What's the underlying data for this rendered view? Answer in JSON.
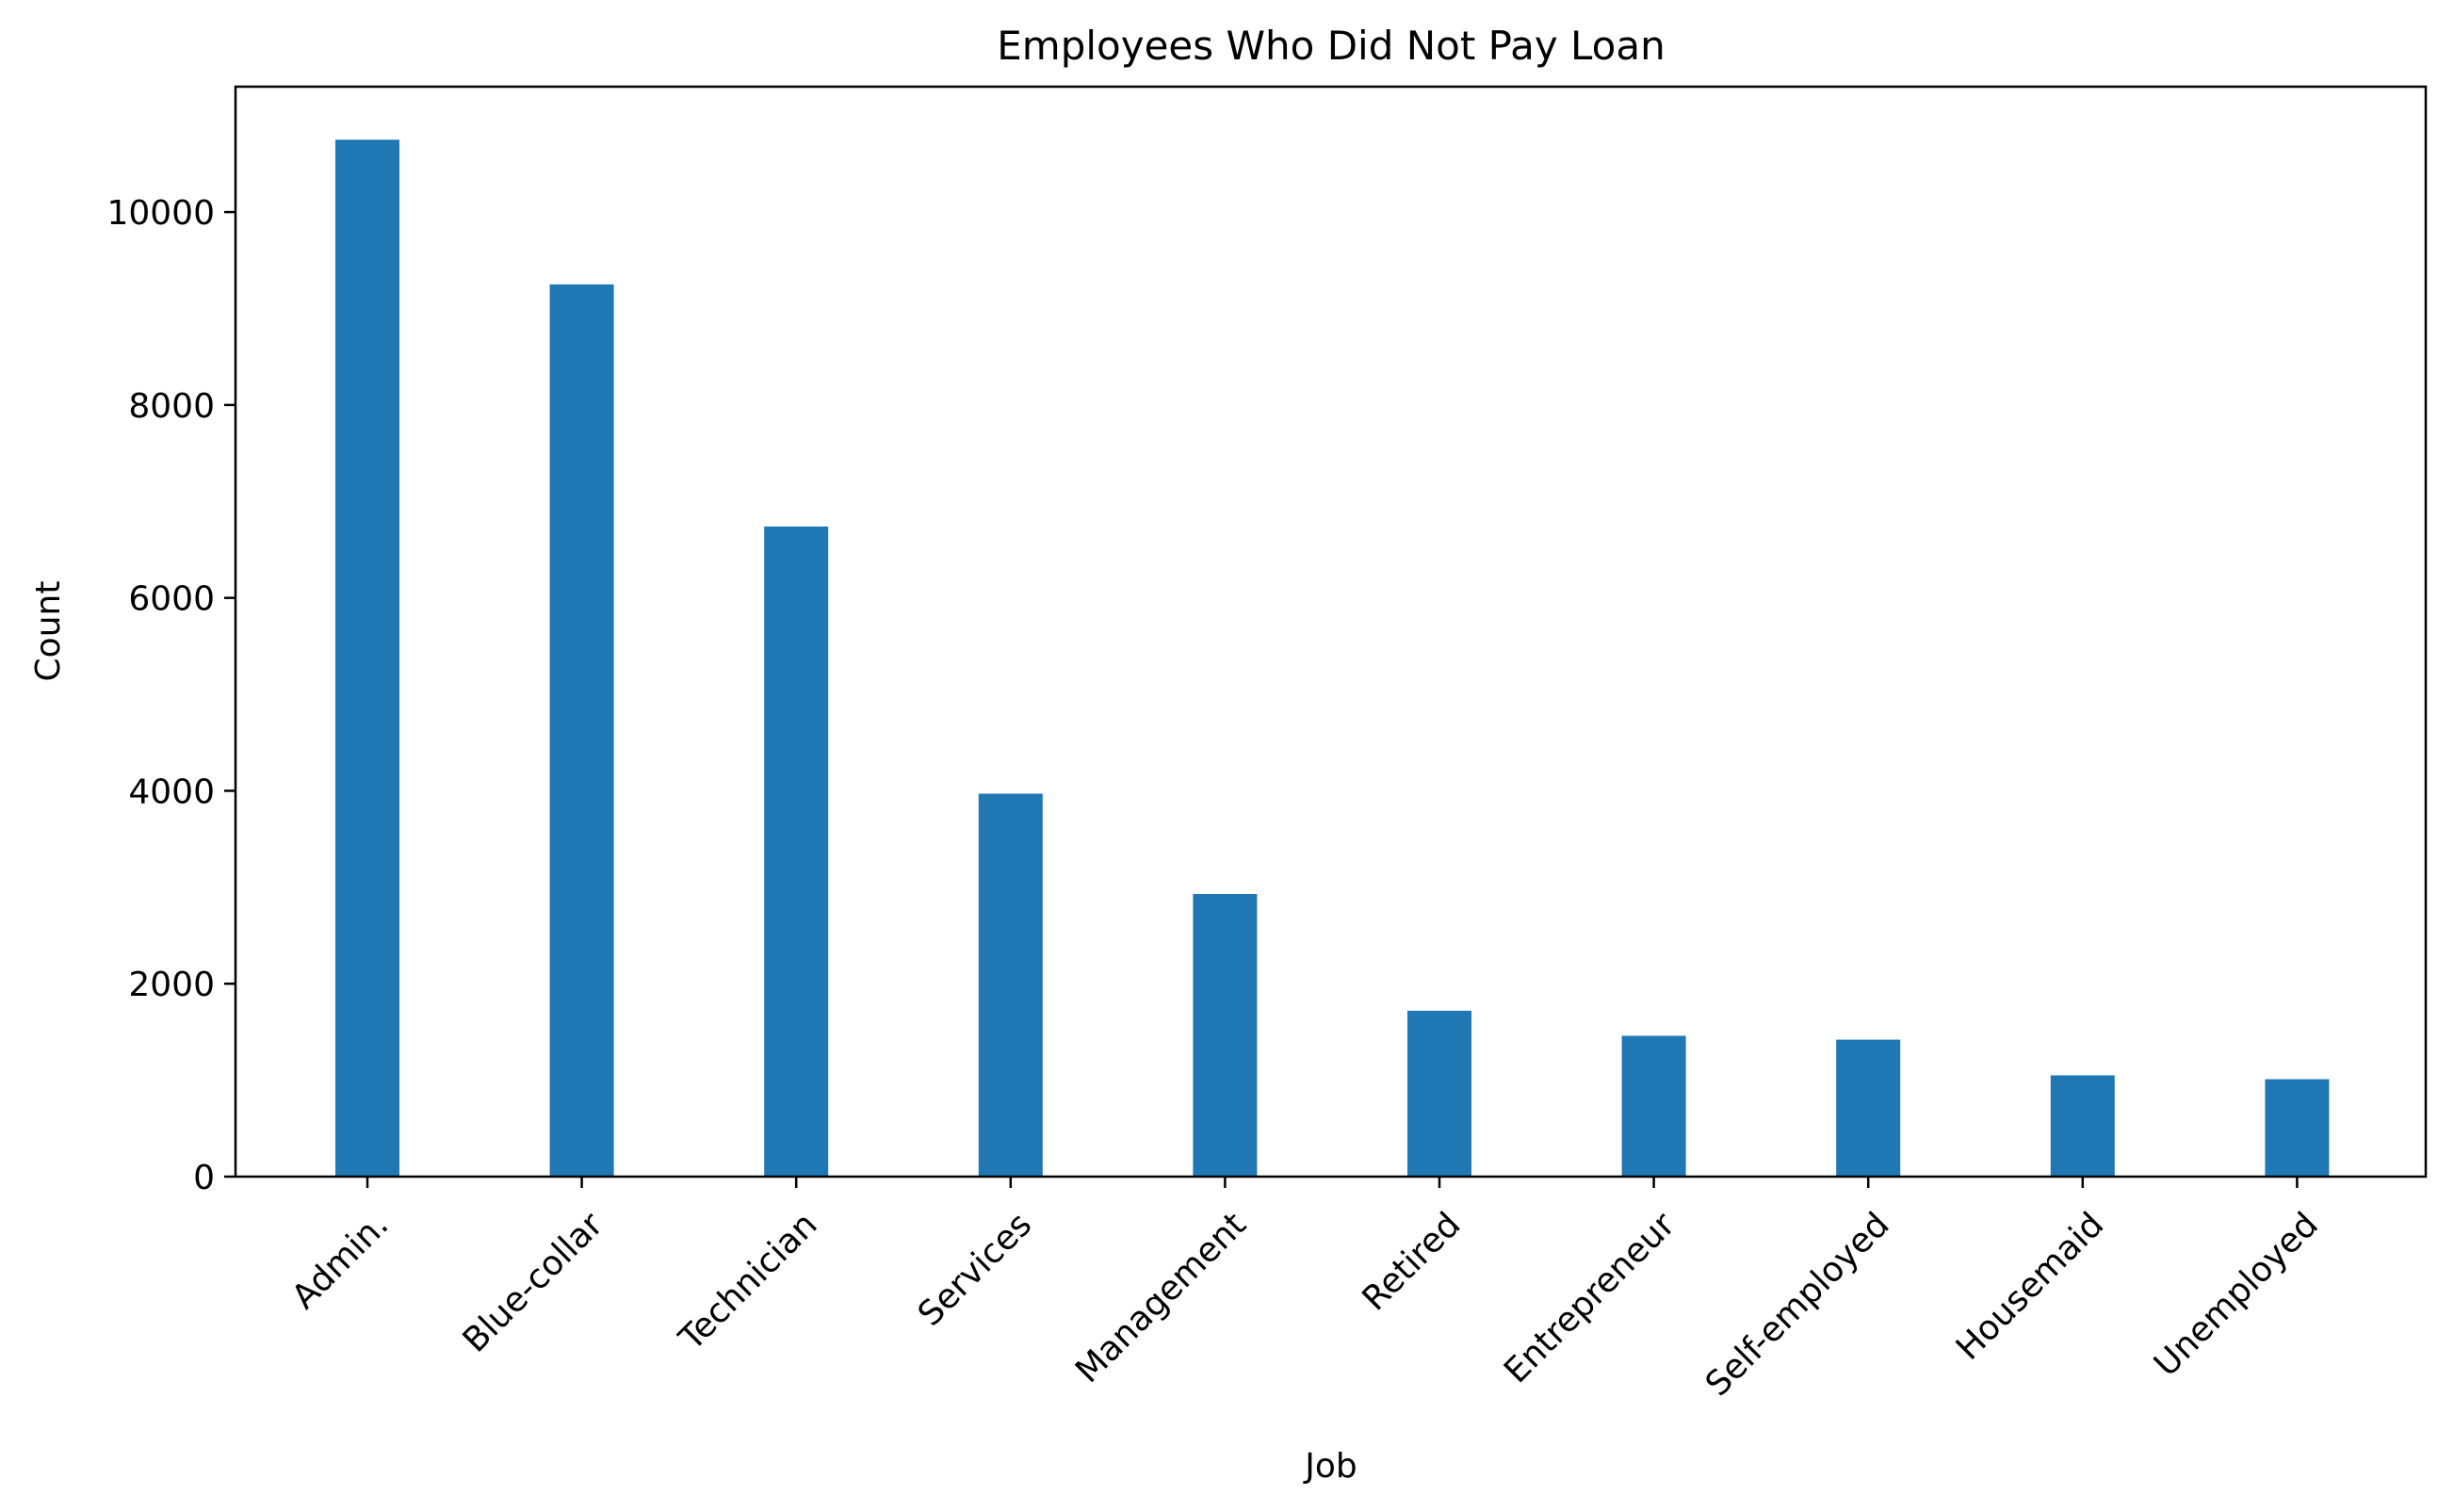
{
  "chart_data": {
    "type": "bar",
    "title": "Employees Who Did Not Pay Loan",
    "xlabel": "Job",
    "ylabel": "Count",
    "categories": [
      "Admin.",
      "Blue-collar",
      "Technician",
      "Services",
      "Management",
      "Retired",
      "Entrepreneur",
      "Self-employed",
      "Housemaid",
      "Unemployed"
    ],
    "values": [
      10750,
      9250,
      6740,
      3970,
      2930,
      1720,
      1460,
      1420,
      1050,
      1010
    ],
    "ylim": [
      0,
      11300
    ],
    "yticks": [
      0,
      2000,
      4000,
      6000,
      8000,
      10000
    ],
    "bar_color": "#1f77b4",
    "grid": false,
    "legend": "none"
  }
}
